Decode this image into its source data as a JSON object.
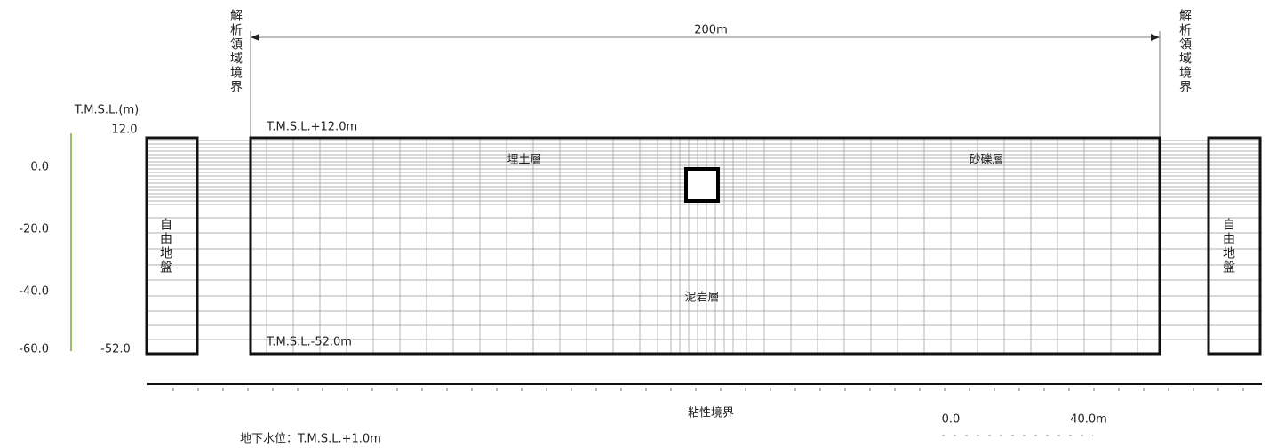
{
  "dimension": {
    "label": "200m"
  },
  "boundary_labels": {
    "left": "解析領域境界",
    "right": "解析領域境界"
  },
  "axis": {
    "title": "T.M.S.L.(m)",
    "labels": [
      "12.0",
      "0.0",
      "-20.0",
      "-40.0",
      "-60.0",
      "-52.0"
    ]
  },
  "layers": [
    "埋土層",
    "砂礫層",
    "泥岩層"
  ],
  "elevations": {
    "top": "T.M.S.L.+12.0m",
    "bottom": "T.M.S.L.-52.0m"
  },
  "free_field": {
    "left": "自由地盤",
    "right": "自由地盤"
  },
  "bottom_boundary": "粘性境界",
  "groundwater": "地下水位：T.M.S.L.+1.0m",
  "scale": {
    "start": "0.0",
    "end": "40.0m"
  }
}
